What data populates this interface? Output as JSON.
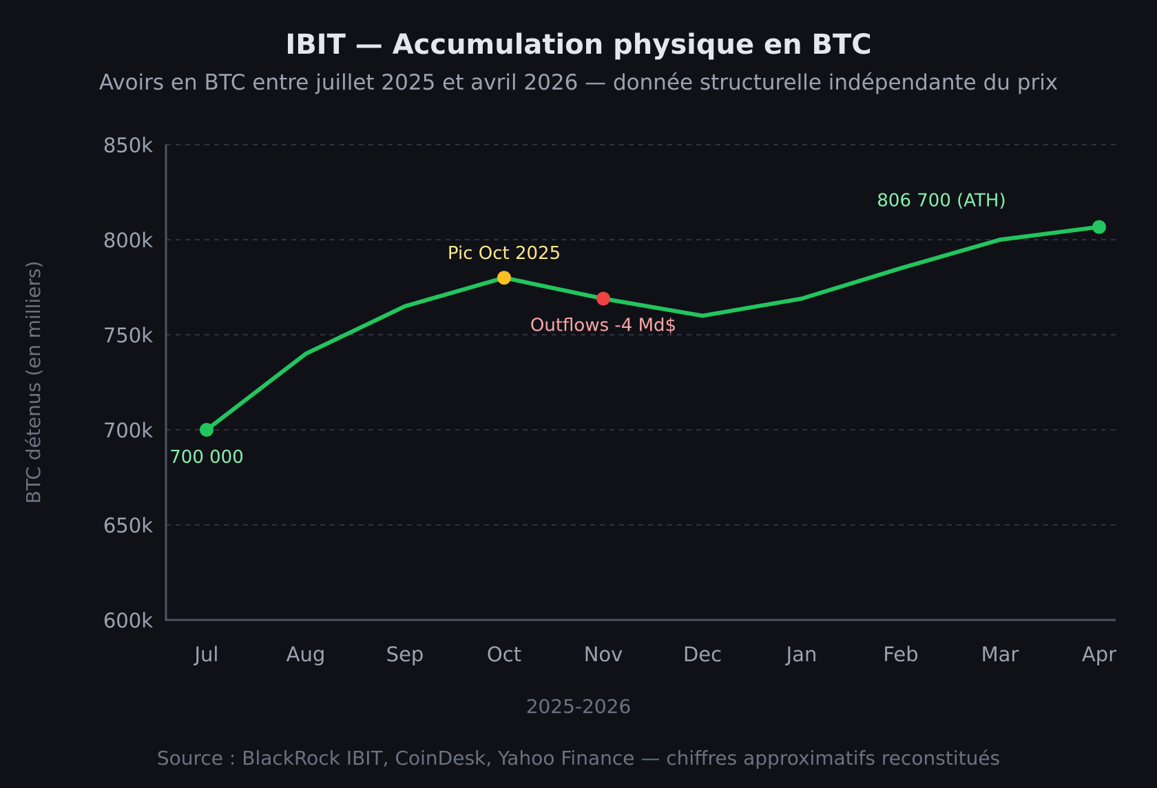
{
  "chart_data": {
    "type": "line",
    "title": "IBIT — Accumulation physique en BTC",
    "subtitle": "Avoirs en BTC entre juillet 2025 et avril 2026 — donnée structurelle indépendante du prix",
    "xlabel": "2025-2026",
    "ylabel": "BTC détenus (en milliers)",
    "source": "Source : BlackRock IBIT, CoinDesk, Yahoo Finance — chiffres approximatifs reconstitués",
    "categories": [
      "Jul",
      "Aug",
      "Sep",
      "Oct",
      "Nov",
      "Dec",
      "Jan",
      "Feb",
      "Mar",
      "Apr"
    ],
    "series": [
      {
        "values": [
          700000,
          740000,
          765000,
          780000,
          769000,
          760000,
          769000,
          785000,
          800000,
          806700
        ]
      }
    ],
    "ylim": [
      600000,
      850000
    ],
    "yticks": [
      600000,
      650000,
      700000,
      750000,
      800000,
      850000
    ],
    "ytick_labels": [
      "600k",
      "650k",
      "700k",
      "750k",
      "800k",
      "850k"
    ],
    "grid": "horizontal dashed",
    "annotations": [
      {
        "index": 0,
        "text": "700 000",
        "color": "#86efac",
        "marker_color": "#22c55e"
      },
      {
        "index": 3,
        "text": "Pic Oct 2025",
        "color": "#fde68a",
        "marker_color": "#fbbf24"
      },
      {
        "index": 4,
        "text": "Outflows -4 Md$",
        "color": "#fca5a5",
        "marker_color": "#ef4444"
      },
      {
        "index": 9,
        "text": "806 700 (ATH)",
        "color": "#86efac",
        "marker_color": "#22c55e"
      }
    ],
    "colors": {
      "background": "#0f1117",
      "line": "#22c55e",
      "title": "#e5e7eb",
      "subtitle": "#9ca3af",
      "tick": "#9ca3af",
      "axis_label": "#6b7280",
      "grid": "#3a3f4b",
      "axis": "#4b5563"
    }
  }
}
